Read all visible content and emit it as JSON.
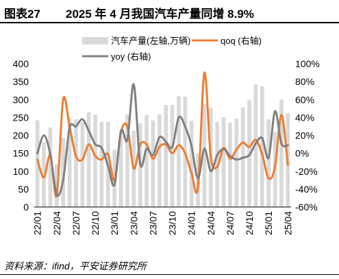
{
  "header": {
    "figure_no": "图表27",
    "title": "2025 年 4 月我国汽车产量同增 8.9%"
  },
  "source": "资料来源：ifind，平安证券研究所",
  "colors": {
    "bars": "#d9d9d9",
    "qoq": "#ed7d31",
    "yoy": "#808080"
  },
  "chart_data": {
    "type": "bar",
    "x": [
      "22/01",
      "22/02",
      "22/03",
      "22/04",
      "22/05",
      "22/06",
      "22/07",
      "22/08",
      "22/09",
      "22/10",
      "22/11",
      "22/12",
      "23/01",
      "23/02",
      "23/03",
      "23/04",
      "23/05",
      "23/06",
      "23/07",
      "23/08",
      "23/09",
      "23/10",
      "23/11",
      "23/12",
      "24/01",
      "24/02",
      "24/03",
      "24/04",
      "24/05",
      "24/06",
      "24/07",
      "24/08",
      "24/09",
      "24/10",
      "24/11",
      "24/12",
      "25/01",
      "25/02",
      "25/03",
      "25/04"
    ],
    "x_tick_labels": [
      "22/01",
      "22/04",
      "22/07",
      "22/10",
      "23/01",
      "23/04",
      "23/07",
      "23/10",
      "24/01",
      "24/04",
      "24/07",
      "24/10",
      "25/01",
      "25/04"
    ],
    "series": [
      {
        "name": "汽车产量(左轴,万辆)",
        "type": "bar",
        "axis": "left",
        "values": [
          242,
          181,
          222,
          120,
          193,
          250,
          245,
          237,
          265,
          258,
          238,
          237,
          160,
          198,
          258,
          213,
          234,
          257,
          242,
          258,
          285,
          285,
          309,
          308,
          241,
          150,
          287,
          277,
          237,
          251,
          236,
          247,
          278,
          298,
          342,
          337,
          245,
          210,
          300,
          262
        ]
      },
      {
        "name": "qoq (右轴)",
        "type": "line",
        "axis": "right",
        "values": [
          -7,
          -27,
          -2,
          -47,
          60,
          30,
          -3,
          -7,
          10,
          -3,
          -7,
          -1,
          -30,
          23,
          30,
          -17,
          10,
          10,
          -6,
          7,
          10,
          0,
          9,
          0,
          -22,
          -38,
          90,
          -4,
          -15,
          6,
          -6,
          4,
          12,
          7,
          15,
          -1,
          -28,
          -15,
          43,
          -13
        ]
      },
      {
        "name": "yoy (右轴)",
        "type": "line",
        "axis": "right",
        "values": [
          0,
          20,
          -1,
          -46,
          -30,
          28,
          30,
          38,
          25,
          10,
          6,
          -14,
          -35,
          25,
          15,
          77,
          -12,
          5,
          -2,
          18,
          13,
          7,
          40,
          30,
          8,
          -28,
          5,
          -20,
          -2,
          5,
          -3,
          -7,
          -5,
          -2,
          11,
          17,
          -5,
          47,
          11,
          9
        ]
      }
    ],
    "ylim_left": [
      0,
      400
    ],
    "yticks_left": [
      "0",
      "50",
      "100",
      "150",
      "200",
      "250",
      "300",
      "350",
      "400"
    ],
    "ylim_right": [
      -60,
      100
    ],
    "yticks_right": [
      "-60%",
      "-40%",
      "-20%",
      "0%",
      "20%",
      "40%",
      "60%",
      "80%",
      "100%"
    ],
    "legend": [
      "汽车产量(左轴,万辆)",
      "qoq (右轴)",
      "yoy (右轴)"
    ],
    "legend_position": "top",
    "grid": false
  }
}
